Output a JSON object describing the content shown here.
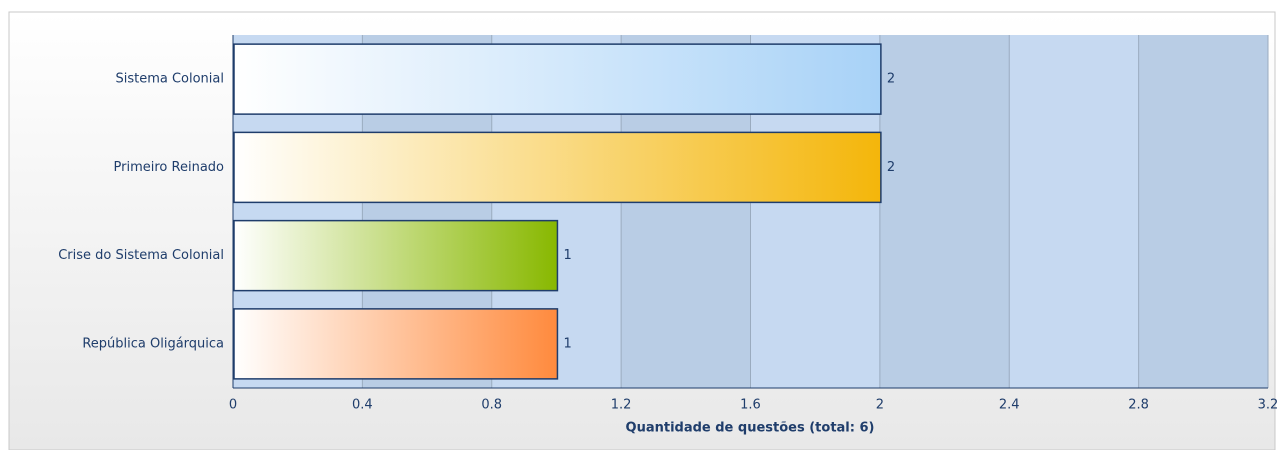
{
  "chart_data": {
    "type": "barh",
    "categories": [
      "Sistema Colonial",
      "Primeiro Reinado",
      "Crise do Sistema Colonial",
      "República Oligárquica"
    ],
    "values": [
      2,
      2,
      1,
      1
    ],
    "colors": [
      "#a8d2f7",
      "#f4b60a",
      "#88b800",
      "#ff8a3d"
    ],
    "xlabel": "Quantidade de questões (total: 6)",
    "xlim": [
      0,
      3.2
    ],
    "xticks": [
      0,
      0.4,
      0.8,
      1.2,
      1.6,
      2,
      2.4,
      2.8,
      3.2
    ],
    "grid": true
  }
}
